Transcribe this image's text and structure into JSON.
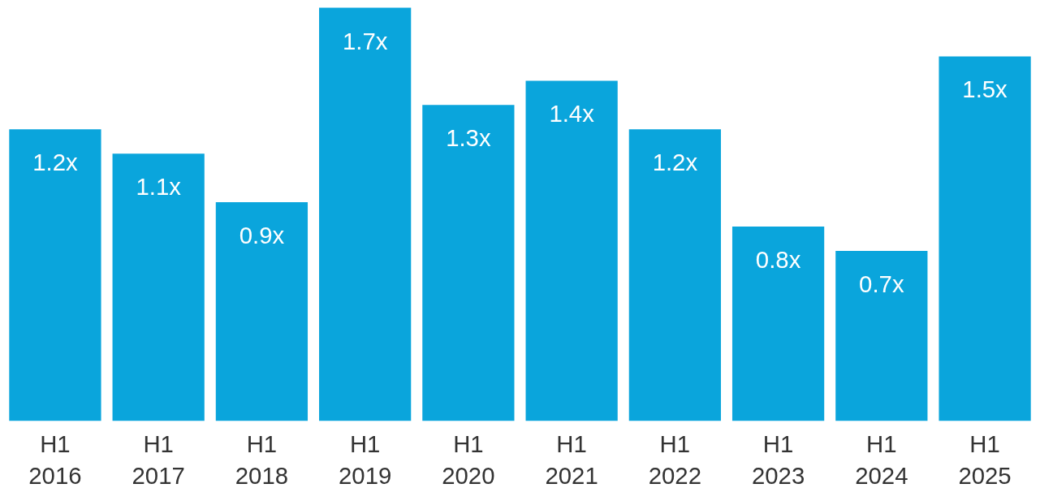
{
  "chart_data": {
    "type": "bar",
    "categories": [
      "H1\n2016",
      "H1\n2017",
      "H1\n2018",
      "H1\n2019",
      "H1\n2020",
      "H1\n2021",
      "H1\n2022",
      "H1\n2023",
      "H1\n2024",
      "H1\n2025"
    ],
    "values": [
      1.2,
      1.1,
      0.9,
      1.7,
      1.3,
      1.4,
      1.2,
      0.8,
      0.7,
      1.5
    ],
    "value_labels": [
      "1.2x",
      "1.1x",
      "0.9x",
      "1.7x",
      "1.3x",
      "1.4x",
      "1.2x",
      "0.8x",
      "0.7x",
      "1.5x"
    ],
    "color": "#0aa5dc",
    "grid": false
  }
}
